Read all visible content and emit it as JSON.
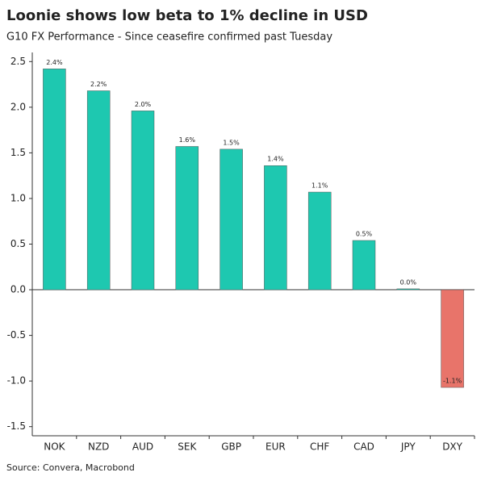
{
  "chart_data": {
    "type": "bar",
    "title": "Loonie shows low beta to 1% decline in USD",
    "subtitle": "G10 FX Performance - Since ceasefire confirmed past Tuesday",
    "source": "Source: Convera, Macrobond",
    "categories": [
      "NOK",
      "NZD",
      "AUD",
      "SEK",
      "GBP",
      "EUR",
      "CHF",
      "CAD",
      "JPY",
      "DXY"
    ],
    "values": [
      2.42,
      2.18,
      1.96,
      1.57,
      1.54,
      1.36,
      1.07,
      0.54,
      0.01,
      -1.07
    ],
    "value_labels": [
      "2.4%",
      "2.2%",
      "2.0%",
      "1.6%",
      "1.5%",
      "1.4%",
      "1.1%",
      "0.5%",
      "0.0%",
      "-1.1%"
    ],
    "colors": [
      "#1ec8b0",
      "#1ec8b0",
      "#1ec8b0",
      "#1ec8b0",
      "#1ec8b0",
      "#1ec8b0",
      "#1ec8b0",
      "#1ec8b0",
      "#1ec8b0",
      "#e8746a"
    ],
    "ylim": [
      -1.6,
      2.6
    ],
    "yticks": [
      2.5,
      {
        "value": 2,
        "label": "2.0"
      },
      1.5,
      {
        "value": 1,
        "label": "1.0"
      },
      0.5,
      {
        "value": 0,
        "label": "0.0"
      },
      -0.5,
      {
        "value": -1,
        "label": "-1.0"
      },
      -1.5
    ]
  }
}
